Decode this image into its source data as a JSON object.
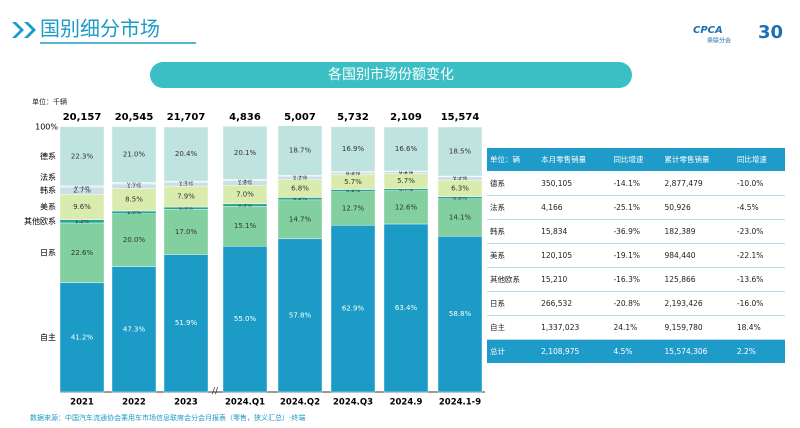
{
  "header": {
    "title": "国别细分市场",
    "banner": "各国别市场份额变化"
  },
  "logo": {
    "brand": "CPCA",
    "name": "乘联分会",
    "anniversary": "30"
  },
  "chart_data": {
    "type": "stacked_bar",
    "unit": "单位：千辆",
    "categories": [
      "2021",
      "2022",
      "2023",
      "2024.Q1",
      "2024.Q2",
      "2024.Q3",
      "2024.9",
      "2024.1-9"
    ],
    "ylim": [
      0,
      100
    ],
    "yticks": [
      {
        "value": 100,
        "label": "100%"
      }
    ],
    "bar_totals": {
      "values": [
        20157,
        20545,
        21707,
        4836,
        5007,
        5732,
        2109,
        15574
      ],
      "value_labels": [
        "20,157",
        "20,545",
        "21,707",
        "4,836",
        "5,007",
        "5,732",
        "2,109",
        "15,574"
      ]
    },
    "series": [
      {
        "name": "自主",
        "color": "#1b9bc6",
        "values": [
          41.2,
          47.3,
          51.9,
          55.0,
          57.8,
          62.9,
          63.4,
          58.8
        ],
        "value_labels": [
          "41.2%",
          "47.3%",
          "51.9%",
          "55.0%",
          "57.8%",
          "62.9%",
          "63.4%",
          "58.8%"
        ]
      },
      {
        "name": "日系",
        "color": "#82cf9f",
        "values": [
          22.6,
          20.0,
          17.0,
          15.1,
          14.7,
          12.7,
          12.6,
          14.1
        ],
        "value_labels": [
          "22.6%",
          "20.0%",
          "17.0%",
          "15.1%",
          "14.7%",
          "12.7%",
          "12.6%",
          "14.1%"
        ]
      },
      {
        "name": "其他欧系",
        "color": "#23a59a",
        "values": [
          1.2,
          1.0,
          0.9,
          0.9,
          0.9,
          0.8,
          0.7,
          0.8
        ],
        "value_labels": [
          "1.2%",
          "1.0%",
          "0.9%",
          "0.9%",
          "0.9%",
          "0.8%",
          "0.7%",
          "0.8%"
        ]
      },
      {
        "name": "美系",
        "color": "#d9ecae",
        "values": [
          9.6,
          8.5,
          7.9,
          7.0,
          6.8,
          5.7,
          5.7,
          6.3
        ],
        "value_labels": [
          "9.6%",
          "8.5%",
          "7.9%",
          "7.0%",
          "6.8%",
          "5.7%",
          "5.7%",
          "6.3%"
        ]
      },
      {
        "name": "韩系",
        "color": "#c9dfe9",
        "values": [
          2.7,
          1.7,
          1.5,
          1.8,
          1.2,
          0.8,
          0.8,
          1.2
        ],
        "value_labels": [
          "2.7%",
          "1.7%",
          "1.5%",
          "1.8%",
          "1.2%",
          "0.8%",
          "0.8%",
          "1.2%"
        ]
      },
      {
        "name": "法系",
        "color": "#e9eef2",
        "values": [
          0.5,
          0.6,
          0.4,
          0.4,
          0.4,
          0.3,
          0.2,
          0.3
        ],
        "value_labels": [
          "0.5%",
          "0.6%",
          "0.4%",
          "0.4%",
          "0.4%",
          "0.3%",
          "0.2%",
          "0.3%"
        ]
      },
      {
        "name": "德系",
        "color": "#bfe3df",
        "values": [
          22.3,
          21.0,
          20.4,
          20.1,
          18.7,
          16.9,
          16.6,
          18.5
        ],
        "value_labels": [
          "22.3%",
          "21.0%",
          "20.4%",
          "20.1%",
          "18.7%",
          "16.9%",
          "16.6%",
          "18.5%"
        ]
      }
    ]
  },
  "table": {
    "rows": [
      [
        "单位：辆",
        "本月零售销量",
        "同比增速",
        "累计零售销量",
        "同比增速"
      ],
      [
        "德系",
        "350,105",
        "-14.1%",
        "2,877,479",
        "-10.0%"
      ],
      [
        "法系",
        "4,166",
        "-25.1%",
        "50,926",
        "-4.5%"
      ],
      [
        "韩系",
        "15,834",
        "-36.9%",
        "182,389",
        "-23.0%"
      ],
      [
        "美系",
        "120,105",
        "-19.1%",
        "984,440",
        "-22.1%"
      ],
      [
        "其他欧系",
        "15,210",
        "-16.3%",
        "125,866",
        "-13.6%"
      ],
      [
        "日系",
        "266,532",
        "-20.8%",
        "2,193,426",
        "-16.0%"
      ],
      [
        "自主",
        "1,337,023",
        "24.1%",
        "9,159,780",
        "18.4%"
      ],
      [
        "总计",
        "2,108,975",
        "4.5%",
        "15,574,306",
        "2.2%"
      ]
    ]
  },
  "source": "数据来源：中国汽车流通协会乘用车市场信息联席会分会月报表（零售，狭义汇总）-终端"
}
